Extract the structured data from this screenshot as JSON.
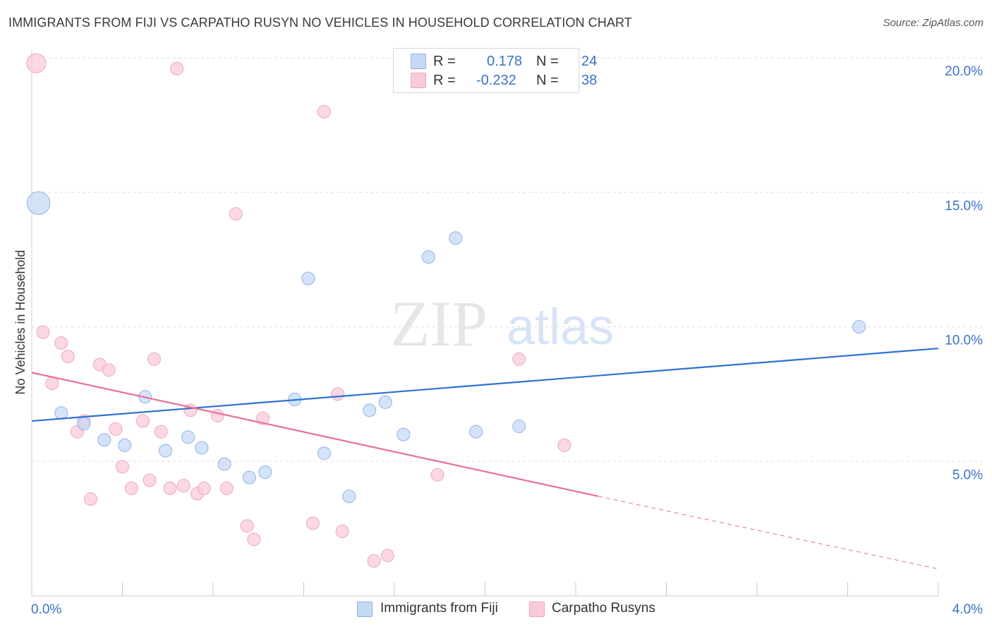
{
  "title": "IMMIGRANTS FROM FIJI VS CARPATHO RUSYN NO VEHICLES IN HOUSEHOLD CORRELATION CHART",
  "source": "Source: ZipAtlas.com",
  "watermark": {
    "zip": "ZIP",
    "atlas": "atlas"
  },
  "legend_stats": {
    "r_label": "R =",
    "n_label": "N =",
    "fiji": {
      "r": "0.178",
      "n": "24"
    },
    "rusyn": {
      "r": "-0.232",
      "n": "38"
    }
  },
  "legend_bottom": {
    "fiji": "Immigrants from Fiji",
    "rusyn": "Carpatho Rusyns"
  },
  "colors": {
    "fiji_fill": "#c5d9f5",
    "fiji_stroke": "#8fb3e6",
    "fiji_line": "#2f72d0",
    "rusyn_fill": "#f9cbd8",
    "rusyn_stroke": "#f0a6bd",
    "rusyn_line": "#e8709a",
    "axis_text": "#3b72c8",
    "grid": "#dedede"
  },
  "chart_data": {
    "type": "scatter",
    "title": "IMMIGRANTS FROM FIJI VS CARPATHO RUSYN NO VEHICLES IN HOUSEHOLD CORRELATION CHART",
    "xlabel": "",
    "ylabel": "No Vehicles in Household",
    "xlim": [
      0,
      4.0
    ],
    "ylim": [
      0,
      20.5
    ],
    "x_tick_labels": [
      "0.0%",
      "4.0%"
    ],
    "y_ticks": [
      5,
      10,
      15,
      20
    ],
    "y_tick_labels": [
      "5.0%",
      "10.0%",
      "15.0%",
      "20.0%"
    ],
    "grid": "horizontal dashed",
    "series": [
      {
        "name": "Immigrants from Fiji",
        "points": [
          [
            0.03,
            14.6,
            1.8
          ],
          [
            0.13,
            6.8,
            1
          ],
          [
            0.23,
            6.4,
            1
          ],
          [
            0.32,
            5.8,
            1
          ],
          [
            0.41,
            5.6,
            1
          ],
          [
            0.5,
            7.4,
            1
          ],
          [
            0.59,
            5.4,
            1
          ],
          [
            0.69,
            5.9,
            1
          ],
          [
            0.75,
            5.5,
            1
          ],
          [
            0.85,
            4.9,
            1
          ],
          [
            0.96,
            4.4,
            1
          ],
          [
            1.03,
            4.6,
            1
          ],
          [
            1.16,
            7.3,
            1
          ],
          [
            1.22,
            11.8,
            1
          ],
          [
            1.29,
            5.3,
            1
          ],
          [
            1.4,
            3.7,
            1
          ],
          [
            1.49,
            6.9,
            1
          ],
          [
            1.56,
            7.2,
            1
          ],
          [
            1.64,
            6.0,
            1
          ],
          [
            1.75,
            12.6,
            1
          ],
          [
            1.87,
            13.3,
            1
          ],
          [
            1.96,
            6.1,
            1
          ],
          [
            2.15,
            6.3,
            1
          ],
          [
            3.65,
            10.0,
            1
          ]
        ],
        "trend": {
          "x": [
            0,
            4.0
          ],
          "y": [
            6.5,
            9.2
          ]
        }
      },
      {
        "name": "Carpatho Rusyns",
        "points": [
          [
            0.02,
            19.8,
            1.5
          ],
          [
            0.05,
            9.8,
            1
          ],
          [
            0.09,
            7.9,
            1
          ],
          [
            0.13,
            9.4,
            1
          ],
          [
            0.16,
            8.9,
            1
          ],
          [
            0.2,
            6.1,
            1
          ],
          [
            0.23,
            6.5,
            1
          ],
          [
            0.26,
            3.6,
            1
          ],
          [
            0.3,
            8.6,
            1
          ],
          [
            0.34,
            8.4,
            1
          ],
          [
            0.37,
            6.2,
            1
          ],
          [
            0.4,
            4.8,
            1
          ],
          [
            0.44,
            4.0,
            1
          ],
          [
            0.49,
            6.5,
            1
          ],
          [
            0.52,
            4.3,
            1
          ],
          [
            0.54,
            8.8,
            1
          ],
          [
            0.57,
            6.1,
            1
          ],
          [
            0.61,
            4.0,
            1
          ],
          [
            0.64,
            19.6,
            1
          ],
          [
            0.67,
            4.1,
            1
          ],
          [
            0.7,
            6.9,
            1
          ],
          [
            0.73,
            3.8,
            1
          ],
          [
            0.76,
            4.0,
            1
          ],
          [
            0.82,
            6.7,
            1
          ],
          [
            0.86,
            4.0,
            1
          ],
          [
            0.9,
            14.2,
            1
          ],
          [
            0.95,
            2.6,
            1
          ],
          [
            0.98,
            2.1,
            1
          ],
          [
            1.02,
            6.6,
            1
          ],
          [
            1.24,
            2.7,
            1
          ],
          [
            1.29,
            18.0,
            1
          ],
          [
            1.35,
            7.5,
            1
          ],
          [
            1.37,
            2.4,
            1
          ],
          [
            1.51,
            1.3,
            1
          ],
          [
            1.57,
            1.5,
            1
          ],
          [
            1.79,
            4.5,
            1
          ],
          [
            2.15,
            8.8,
            1
          ],
          [
            2.35,
            5.6,
            1
          ]
        ],
        "trend": {
          "x": [
            0,
            2.5,
            4.0
          ],
          "y": [
            8.3,
            3.7,
            1.0
          ],
          "solid_until_x": 2.5
        }
      }
    ]
  }
}
